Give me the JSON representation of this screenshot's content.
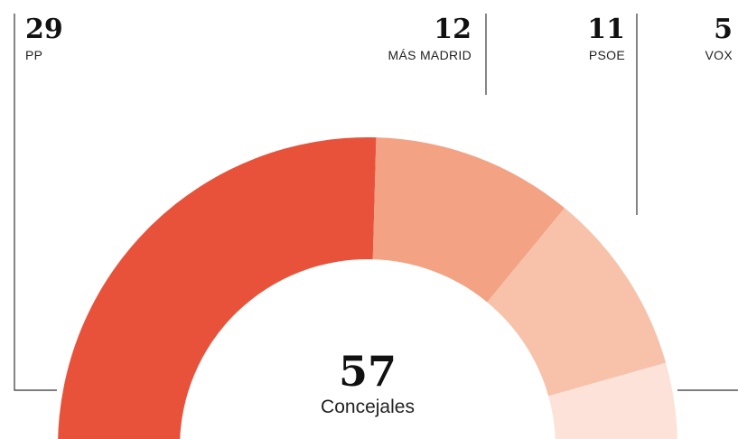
{
  "chart_data": {
    "type": "semi-donut",
    "categories": [
      "PP",
      "MÁS MADRID",
      "PSOE",
      "VOX"
    ],
    "values": [
      29,
      12,
      11,
      5
    ],
    "colors": [
      "#e9523a",
      "#f3a283",
      "#f8c1a9",
      "#fce2d8"
    ],
    "total": 57,
    "total_label": "Concejales"
  }
}
